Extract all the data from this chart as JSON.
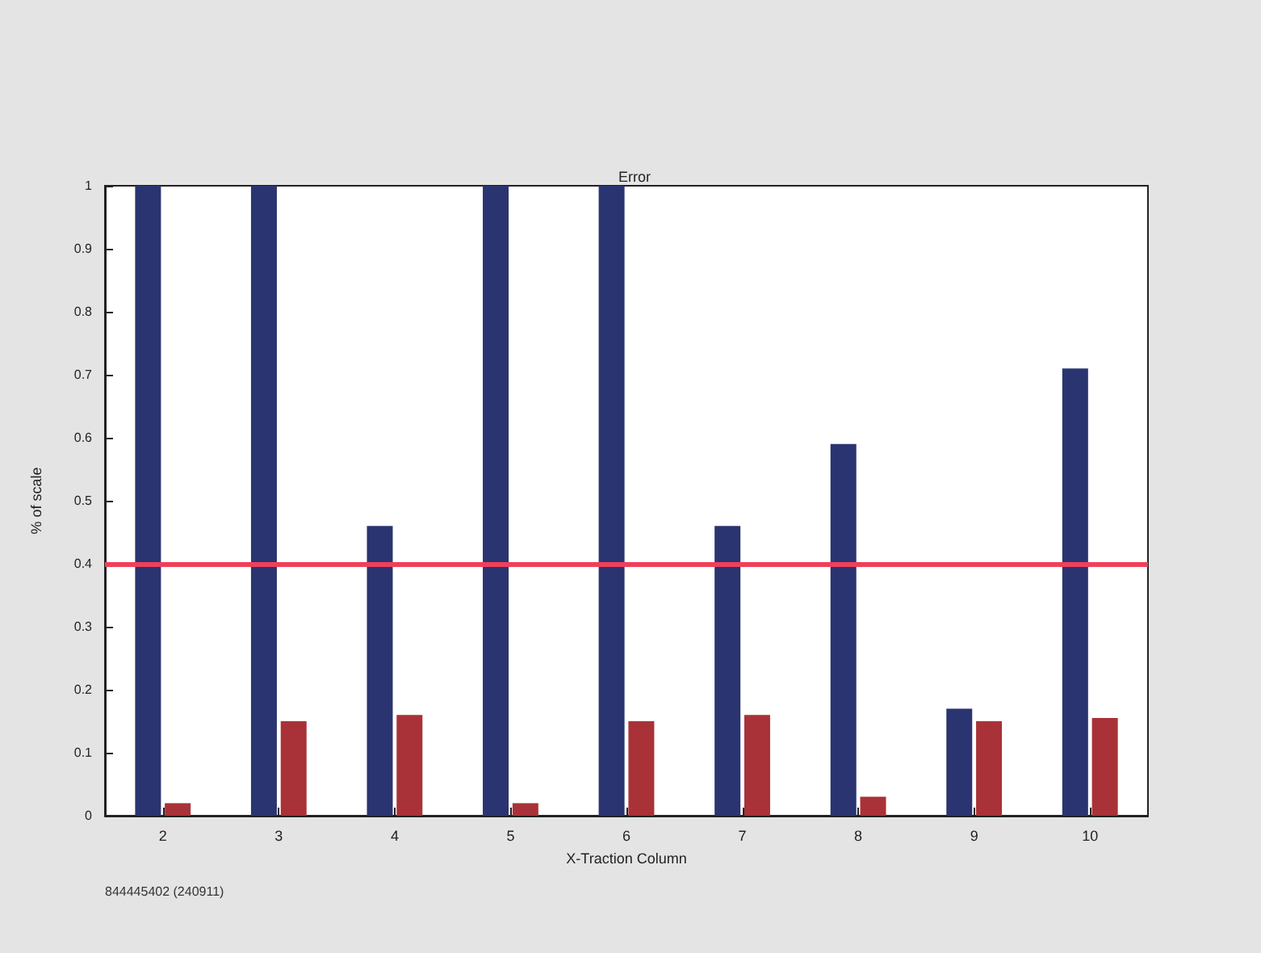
{
  "chart_data": {
    "type": "bar",
    "title": "Error",
    "xlabel": "X-Traction Column",
    "ylabel": "% of scale",
    "categories": [
      "2",
      "3",
      "4",
      "5",
      "6",
      "7",
      "8",
      "9",
      "10"
    ],
    "series": [
      {
        "color": "#2a3470",
        "values": [
          1,
          1,
          0.46,
          1,
          1,
          0.46,
          0.59,
          0.17,
          0.71
        ]
      },
      {
        "color": "#a83238",
        "values": [
          0.02,
          0.15,
          0.16,
          0.02,
          0.15,
          0.16,
          0.03,
          0.15,
          0.155
        ]
      }
    ],
    "ylim": [
      0,
      1
    ],
    "yticks": [
      0,
      0.1,
      0.2,
      0.3,
      0.4,
      0.5,
      0.6,
      0.7,
      0.8,
      0.9,
      1
    ],
    "ref_lines": [
      {
        "axis": "y",
        "value": 0.4,
        "color": "#f0405a"
      }
    ],
    "annotations": [
      "844445402 (240911)"
    ]
  }
}
